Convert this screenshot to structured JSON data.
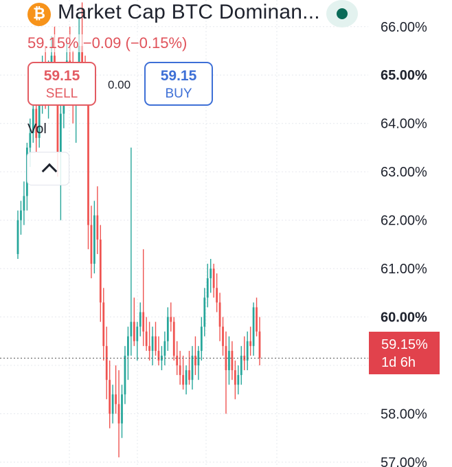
{
  "header": {
    "logo_glyph": "₿",
    "logo_icon": "bitcoin-icon",
    "title": "Market Cap BTC Dominan...",
    "live_indicator_color": "#0a6b58"
  },
  "quote": {
    "text": "59.15%  −0.09 (−0.15%)",
    "color": "#e0525a"
  },
  "trade": {
    "sell": {
      "price": "59.15",
      "label": "SELL",
      "color": "#e35b62"
    },
    "spread": "0.00",
    "buy": {
      "price": "59.15",
      "label": "BUY",
      "color": "#3d6fd6"
    }
  },
  "vol_label": "Vol",
  "collapse_icon": "chevron-up-icon",
  "current_price": {
    "value": "59.15%",
    "countdown": "1d 6h",
    "badge_color": "#e1424c"
  },
  "colors": {
    "up": "#26a69a",
    "down": "#ef5350"
  },
  "chart_data": {
    "type": "candlestick",
    "y_axis": {
      "position": "right",
      "ylim": [
        56.9,
        66.55
      ],
      "ticks": [
        {
          "value": 66,
          "label": "66.00%",
          "bold": false
        },
        {
          "value": 65,
          "label": "65.00%",
          "bold": true
        },
        {
          "value": 64,
          "label": "64.00%",
          "bold": false
        },
        {
          "value": 63,
          "label": "63.00%",
          "bold": false
        },
        {
          "value": 62,
          "label": "62.00%",
          "bold": false
        },
        {
          "value": 61,
          "label": "61.00%",
          "bold": false
        },
        {
          "value": 60,
          "label": "60.00%",
          "bold": true
        },
        {
          "value": 58,
          "label": "58.00%",
          "bold": false
        },
        {
          "value": 57,
          "label": "57.00%",
          "bold": false
        }
      ]
    },
    "grid": true,
    "current_value": 59.15,
    "candles": [
      [
        61.3,
        62.2,
        61.2,
        62.0
      ],
      [
        62.0,
        62.4,
        61.7,
        62.2
      ],
      [
        62.2,
        62.8,
        61.9,
        62.5
      ],
      [
        62.5,
        63.6,
        62.2,
        63.5
      ],
      [
        63.5,
        64.1,
        63.1,
        63.8
      ],
      [
        63.8,
        64.6,
        63.6,
        64.3
      ],
      [
        64.3,
        64.8,
        63.4,
        63.7
      ],
      [
        63.7,
        64.9,
        63.5,
        64.5
      ],
      [
        64.5,
        65.4,
        64.2,
        65.0
      ],
      [
        65.0,
        65.6,
        64.3,
        64.6
      ],
      [
        64.6,
        65.3,
        64.1,
        64.9
      ],
      [
        64.9,
        65.8,
        64.6,
        65.4
      ],
      [
        65.4,
        66.0,
        64.4,
        64.7
      ],
      [
        64.7,
        65.2,
        62.9,
        63.4
      ],
      [
        63.4,
        64.8,
        62.0,
        64.2
      ],
      [
        64.2,
        65.1,
        63.9,
        64.8
      ],
      [
        64.8,
        65.7,
        64.5,
        65.3
      ],
      [
        65.3,
        66.0,
        64.6,
        64.9
      ],
      [
        64.9,
        65.5,
        64.0,
        64.4
      ],
      [
        64.4,
        65.1,
        63.6,
        64.8
      ],
      [
        64.8,
        66.2,
        64.5,
        65.6
      ],
      [
        65.6,
        66.5,
        64.8,
        65.0
      ],
      [
        65.0,
        65.4,
        64.5,
        64.8
      ],
      [
        64.8,
        65.1,
        61.4,
        61.9
      ],
      [
        61.9,
        62.3,
        60.8,
        61.1
      ],
      [
        61.1,
        62.4,
        60.9,
        62.1
      ],
      [
        62.1,
        62.7,
        61.3,
        61.6
      ],
      [
        61.6,
        61.9,
        59.9,
        60.3
      ],
      [
        60.3,
        60.6,
        59.1,
        59.4
      ],
      [
        59.4,
        59.8,
        58.3,
        58.7
      ],
      [
        58.7,
        59.1,
        57.7,
        58.0
      ],
      [
        58.0,
        58.6,
        57.8,
        58.4
      ],
      [
        58.4,
        59.0,
        58.0,
        58.2
      ],
      [
        58.2,
        58.9,
        57.1,
        57.8
      ],
      [
        57.8,
        58.6,
        57.5,
        58.4
      ],
      [
        58.4,
        59.4,
        58.2,
        59.2
      ],
      [
        59.2,
        59.8,
        58.7,
        59.6
      ],
      [
        59.6,
        63.5,
        59.2,
        59.9
      ],
      [
        59.9,
        60.4,
        59.4,
        59.5
      ],
      [
        59.5,
        59.9,
        59.1,
        59.8
      ],
      [
        59.8,
        60.3,
        59.6,
        60.1
      ],
      [
        60.1,
        61.4,
        59.4,
        59.7
      ],
      [
        59.7,
        60.0,
        59.3,
        59.4
      ],
      [
        59.4,
        59.9,
        59.1,
        59.3
      ],
      [
        59.3,
        59.8,
        59.0,
        59.6
      ],
      [
        59.6,
        59.9,
        59.2,
        59.3
      ],
      [
        59.3,
        59.6,
        59.0,
        59.1
      ],
      [
        59.1,
        59.4,
        58.9,
        59.2
      ],
      [
        59.2,
        59.7,
        59.0,
        59.5
      ],
      [
        59.5,
        60.2,
        59.3,
        60.0
      ],
      [
        60.0,
        60.3,
        59.7,
        59.9
      ],
      [
        59.9,
        60.0,
        59.1,
        59.2
      ],
      [
        59.2,
        59.5,
        58.8,
        59.0
      ],
      [
        59.0,
        59.3,
        58.6,
        58.8
      ],
      [
        58.8,
        59.2,
        58.5,
        58.6
      ],
      [
        58.6,
        59.0,
        58.4,
        58.9
      ],
      [
        58.9,
        59.3,
        58.6,
        58.7
      ],
      [
        58.7,
        59.4,
        58.5,
        59.2
      ],
      [
        59.2,
        59.6,
        58.8,
        59.0
      ],
      [
        59.0,
        59.4,
        58.7,
        59.3
      ],
      [
        59.3,
        60.0,
        59.1,
        59.8
      ],
      [
        59.8,
        60.6,
        59.6,
        60.4
      ],
      [
        60.4,
        61.1,
        60.2,
        60.8
      ],
      [
        60.8,
        61.2,
        60.5,
        61.0
      ],
      [
        61.0,
        61.1,
        60.4,
        60.6
      ],
      [
        60.6,
        60.9,
        60.1,
        60.3
      ],
      [
        60.3,
        60.5,
        59.5,
        59.8
      ],
      [
        59.8,
        60.0,
        59.2,
        59.4
      ],
      [
        59.4,
        59.7,
        58.0,
        58.9
      ],
      [
        58.9,
        59.6,
        58.6,
        59.3
      ],
      [
        59.3,
        59.5,
        58.7,
        58.9
      ],
      [
        58.9,
        59.1,
        58.3,
        58.6
      ],
      [
        58.6,
        59.0,
        58.4,
        58.8
      ],
      [
        58.8,
        59.4,
        58.6,
        59.2
      ],
      [
        59.2,
        59.6,
        58.9,
        59.1
      ],
      [
        59.1,
        59.7,
        58.9,
        59.5
      ],
      [
        59.5,
        59.8,
        59.2,
        59.4
      ],
      [
        59.4,
        60.3,
        59.2,
        60.2
      ],
      [
        60.2,
        60.4,
        59.6,
        59.7
      ],
      [
        59.7,
        60.0,
        59.0,
        59.15
      ]
    ]
  }
}
